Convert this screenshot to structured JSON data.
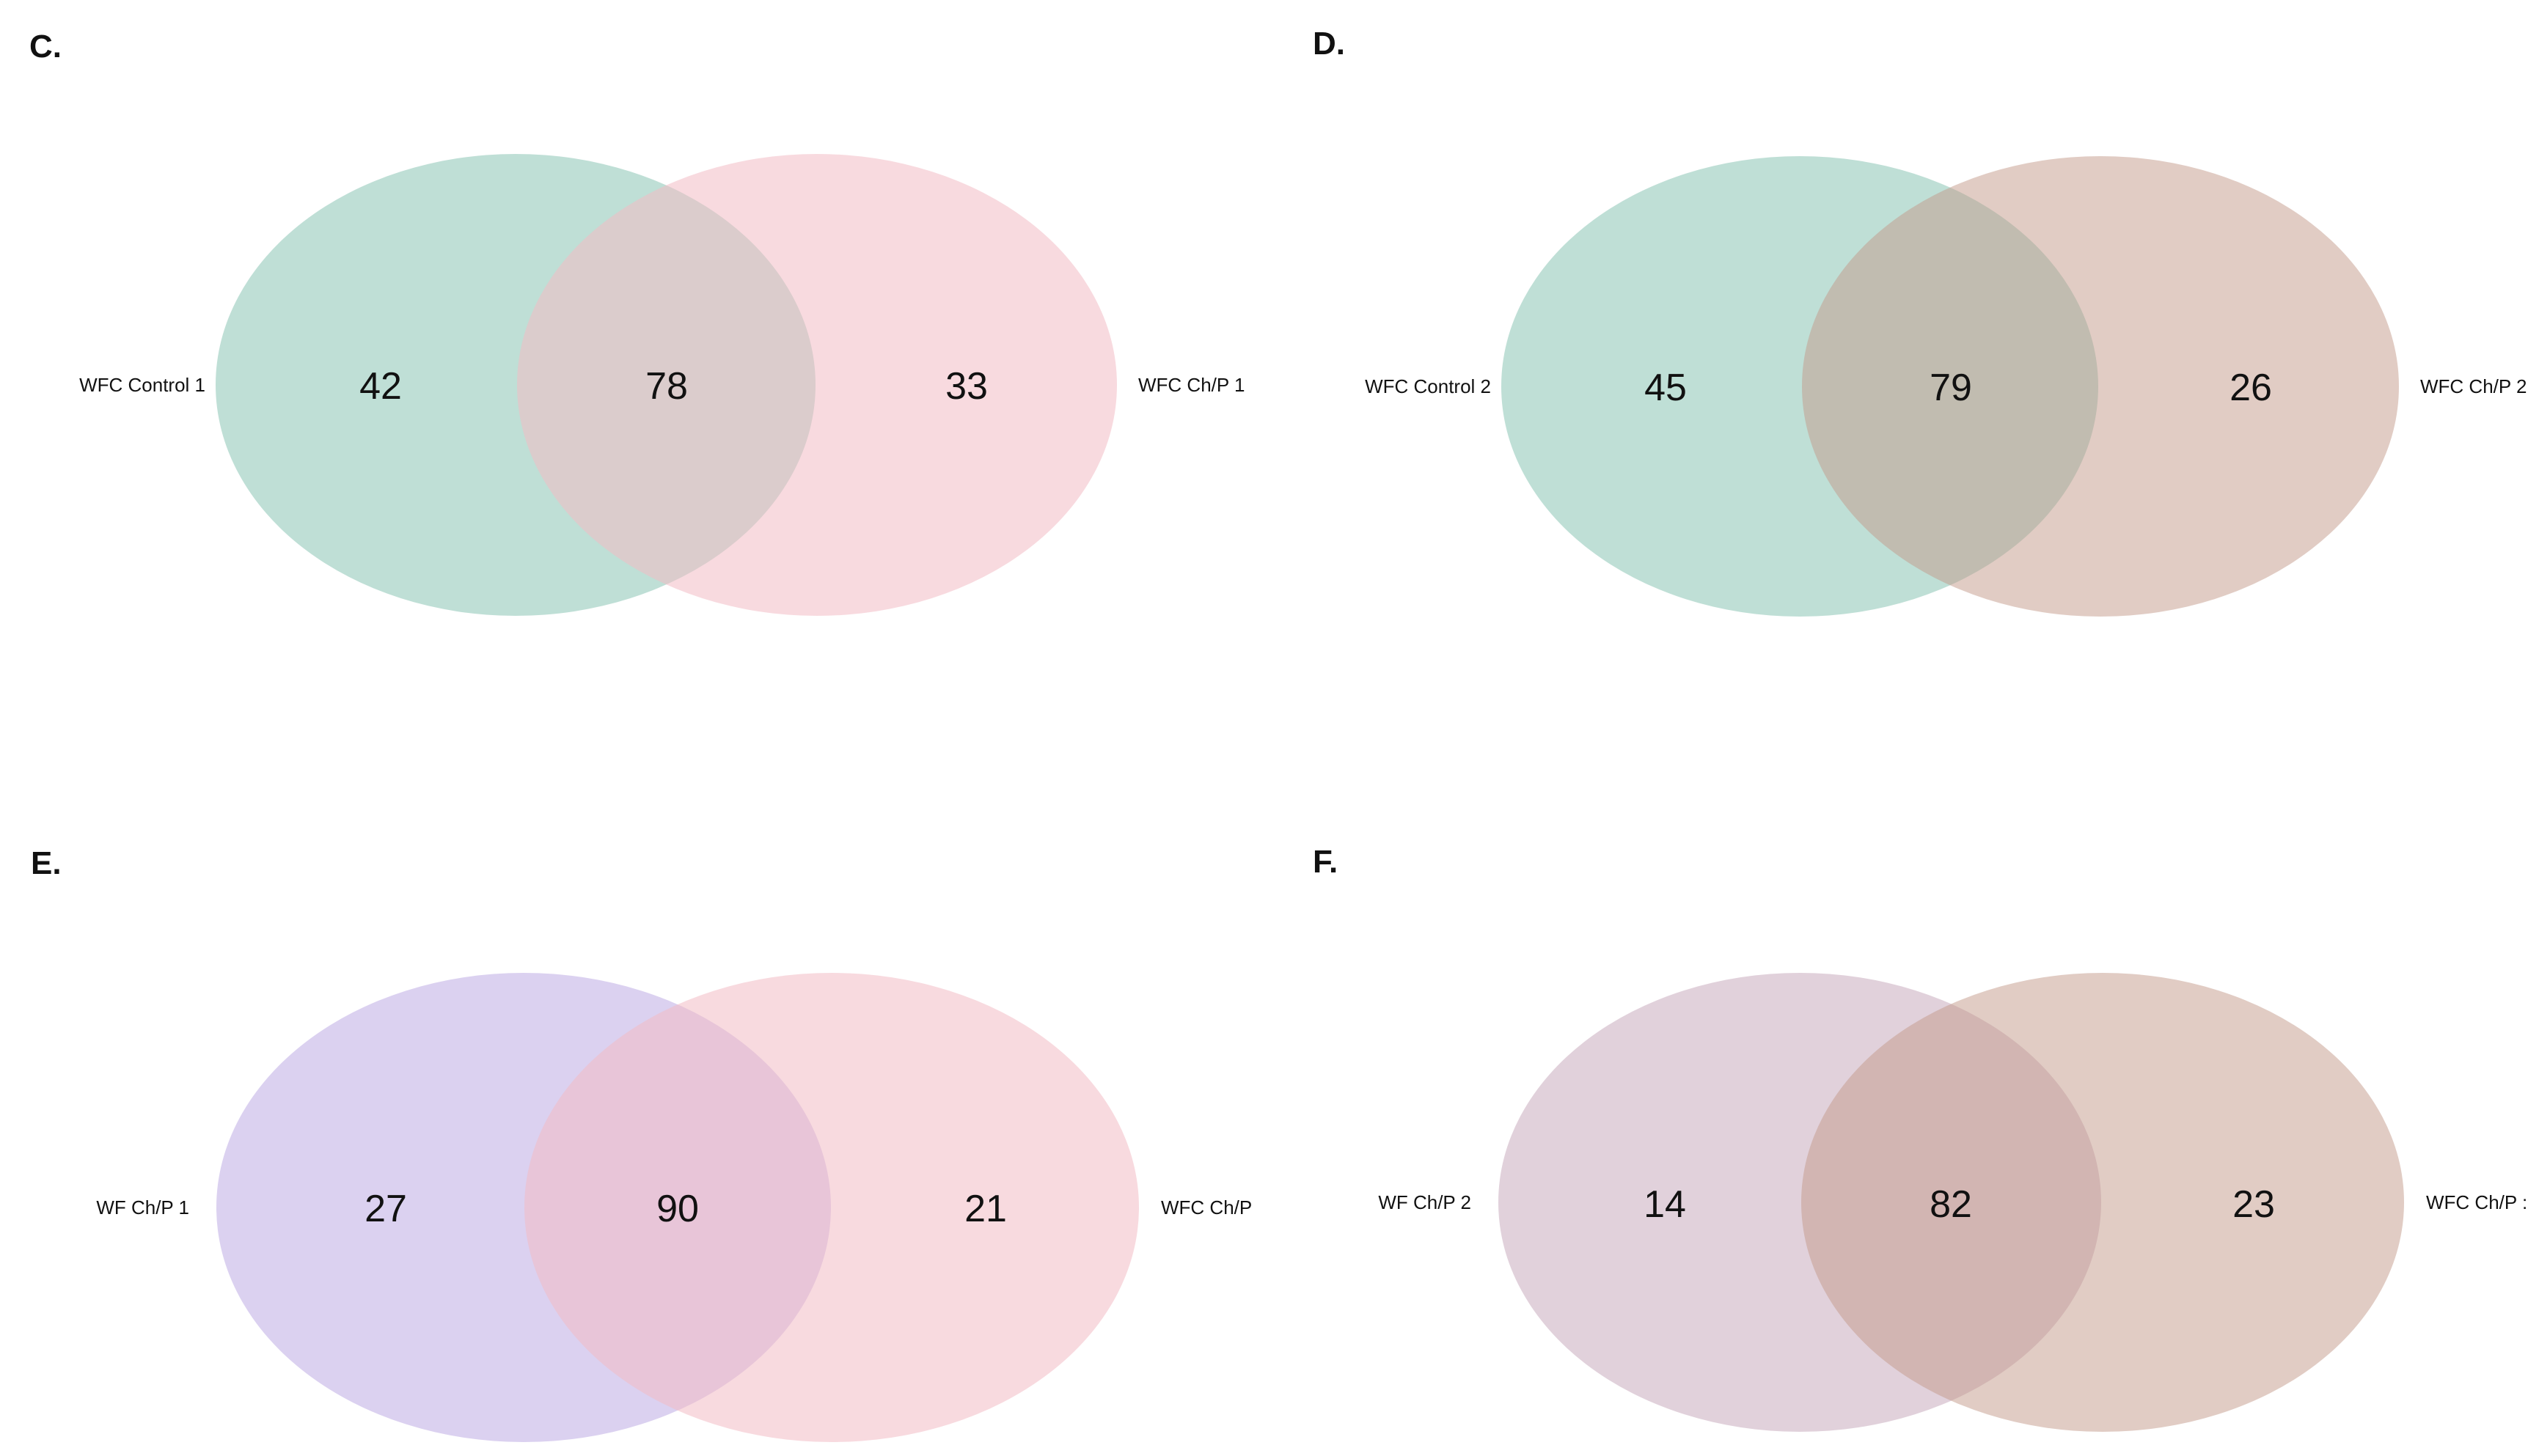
{
  "panels": [
    {
      "label": "C.",
      "sets": [
        {
          "name": "WFC Control 1",
          "color": "#7fbfae",
          "opacity": 0.5
        },
        {
          "name": "WFC Ch/P 1",
          "color": "#f2bcc5",
          "opacity": 0.55
        }
      ],
      "counts": {
        "left_only": "42",
        "both": "78",
        "right_only": "33"
      }
    },
    {
      "label": "D.",
      "sets": [
        {
          "name": "WFC Control 2",
          "color": "#7fbfae",
          "opacity": 0.5
        },
        {
          "name": "WFC Ch/P 2",
          "color": "#c4998a",
          "opacity": 0.5
        }
      ],
      "counts": {
        "left_only": "45",
        "both": "79",
        "right_only": "26"
      }
    },
    {
      "label": "E.",
      "sets": [
        {
          "name": "WF Ch/P 1",
          "color": "#b7a4e2",
          "opacity": 0.5
        },
        {
          "name": "WFC Ch/P",
          "color": "#f2bcc5",
          "opacity": 0.55
        }
      ],
      "counts": {
        "left_only": "27",
        "both": "90",
        "right_only": "21"
      }
    },
    {
      "label": "F.",
      "sets": [
        {
          "name": "WF Ch/P 2",
          "color": "#c3a3b8",
          "opacity": 0.5
        },
        {
          "name": "WFC Ch/P :",
          "color": "#c4998a",
          "opacity": 0.5
        }
      ],
      "counts": {
        "left_only": "14",
        "both": "82",
        "right_only": "23"
      }
    }
  ]
}
